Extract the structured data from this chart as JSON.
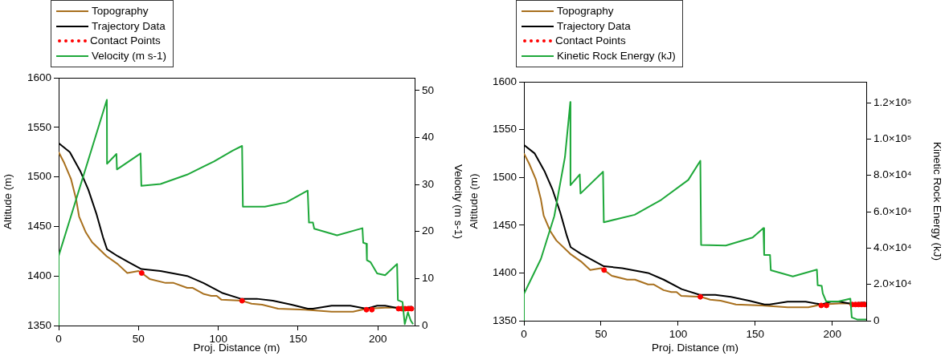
{
  "chart_data": [
    {
      "type": "line",
      "xlabel": "Proj. Distance (m)",
      "ylabel": "Altitude (m)",
      "y2label": "Velocity (m s-1)",
      "legend": "top left",
      "grid": false,
      "xlim": [
        0,
        223
      ],
      "xticks": [
        0,
        50,
        100,
        150,
        200
      ],
      "ylim": [
        1350,
        1600
      ],
      "yticks": [
        1350,
        1400,
        1450,
        1500,
        1550,
        1600
      ],
      "y2lim": [
        0,
        52.7
      ],
      "y2ticks": [
        0,
        10,
        20,
        30,
        40,
        50
      ],
      "series": [
        {
          "name": "Topography",
          "type": "line",
          "color": "#a8701e",
          "marker": "none",
          "x": [
            0,
            3.5,
            7.7,
            11,
            12.8,
            17,
            21,
            30,
            37,
            43,
            50,
            52,
            57,
            67,
            72,
            80.5,
            84,
            90.6,
            95.6,
            99,
            102,
            114.9,
            120.8,
            127.5,
            137.5,
            154.3,
            171,
            184.4,
            192.8,
            204.5,
            212.9,
            222
          ],
          "values": [
            1525,
            1514,
            1498,
            1477,
            1460,
            1444,
            1434,
            1420,
            1412,
            1403,
            1405,
            1403,
            1397,
            1393,
            1393,
            1388,
            1388,
            1382,
            1380,
            1380,
            1376,
            1375,
            1372,
            1371,
            1367,
            1366,
            1364,
            1364,
            1367,
            1368,
            1368,
            1368
          ]
        },
        {
          "name": "Trajectory Data",
          "type": "line",
          "color": "#000000",
          "marker": "none",
          "x": [
            0,
            7,
            13.5,
            18.6,
            23.6,
            27.8,
            30.3,
            37,
            43.7,
            51.8,
            63.8,
            80.5,
            90.6,
            102.3,
            114.1,
            124.1,
            134.2,
            145.9,
            156,
            159.3,
            171,
            182.7,
            192.8,
            199.5,
            204.5,
            211.2,
            221.3
          ],
          "values": [
            1534,
            1525,
            1506,
            1487,
            1463,
            1439,
            1427,
            1420,
            1414,
            1407,
            1405,
            1400,
            1393,
            1383,
            1377,
            1377,
            1375,
            1371,
            1367,
            1367,
            1370,
            1370,
            1367,
            1370,
            1370,
            1368,
            1369
          ]
        },
        {
          "name": "Contact Points",
          "type": "scatter",
          "color": "#ff0000",
          "marker": "circle",
          "x": [
            52,
            114.9,
            192.8,
            196.2,
            212.9,
            215,
            217,
            219,
            221
          ],
          "values": [
            1403,
            1375,
            1366,
            1366,
            1367,
            1367,
            1367,
            1367,
            1367
          ]
        },
        {
          "name": "Velocity (m s-1)",
          "type": "line",
          "axis": "y2",
          "color": "#1ea83a",
          "marker": "none",
          "x": [
            0,
            0,
            30.2,
            30.3,
            36.2,
            36.5,
            51.3,
            51.8,
            63.8,
            80.5,
            97.3,
            109,
            114.9,
            115.4,
            129.2,
            142.6,
            156,
            156.8,
            159.3,
            160.1,
            174.4,
            190.3,
            190.8,
            192.8,
            193.1,
            195.3,
            199.5,
            204.5,
            212,
            212.5,
            215.4,
            216.8,
            218.8,
            220.5,
            222
          ],
          "values": [
            0,
            14.8,
            48,
            34.4,
            36.5,
            33.2,
            36.6,
            29.7,
            30.1,
            32.1,
            34.9,
            37.2,
            38.2,
            25.3,
            25.3,
            26.2,
            28.7,
            21.9,
            21.9,
            20.6,
            19.2,
            20.7,
            17.6,
            17.4,
            13.9,
            13.5,
            11.1,
            10.7,
            13.1,
            5.4,
            5.0,
            0.3,
            2.8,
            1.1,
            0.3
          ]
        }
      ]
    },
    {
      "type": "line",
      "xlabel": "Proj. Distance (m)",
      "ylabel": "Altitude (m)",
      "y2label": "Kinetic Rock Energy (kJ)",
      "legend": "top left",
      "grid": false,
      "xlim": [
        0,
        222
      ],
      "xticks": [
        0,
        50,
        100,
        150,
        200
      ],
      "ylim": [
        1350,
        1600
      ],
      "yticks": [
        1350,
        1400,
        1450,
        1500,
        1550,
        1600
      ],
      "y2lim": [
        0,
        131500
      ],
      "y2ticks": [
        0,
        {
          "value": 20000,
          "label": "2.0×10⁴"
        },
        {
          "value": 40000,
          "label": "4.0×10⁴"
        },
        {
          "value": 60000,
          "label": "6.0×10⁴"
        },
        {
          "value": 80000,
          "label": "8.0×10⁴"
        },
        {
          "value": 100000,
          "label": "1.0×10⁵"
        },
        {
          "value": 120000,
          "label": "1.2×10⁵"
        }
      ],
      "series": [
        {
          "name": "Topography",
          "type": "line",
          "color": "#a8701e",
          "marker": "none",
          "x": [
            0,
            3.5,
            7.7,
            11,
            12.8,
            17,
            21,
            30,
            37,
            43,
            50,
            52,
            57,
            67,
            72,
            80.5,
            84,
            90.6,
            95.6,
            99,
            102,
            114.9,
            120.8,
            127.5,
            137.5,
            154.3,
            171,
            184.4,
            192.8,
            204.5,
            212.9,
            222
          ],
          "values": [
            1525,
            1514,
            1498,
            1477,
            1460,
            1444,
            1434,
            1420,
            1412,
            1403,
            1405,
            1403,
            1397,
            1393,
            1393,
            1388,
            1388,
            1382,
            1380,
            1380,
            1376,
            1375,
            1372,
            1371,
            1367,
            1366,
            1364,
            1364,
            1367,
            1368,
            1368,
            1368
          ]
        },
        {
          "name": "Trajectory Data",
          "type": "line",
          "color": "#000000",
          "marker": "none",
          "x": [
            0,
            7,
            13.5,
            18.6,
            23.6,
            27.8,
            30.3,
            37,
            43.7,
            51.8,
            63.8,
            80.5,
            90.6,
            102.3,
            114.1,
            124.1,
            134.2,
            145.9,
            156,
            159.3,
            171,
            182.7,
            192.8,
            199.5,
            204.5,
            211.2,
            221.3
          ],
          "values": [
            1534,
            1525,
            1506,
            1487,
            1463,
            1439,
            1427,
            1420,
            1414,
            1407,
            1405,
            1400,
            1393,
            1383,
            1377,
            1377,
            1375,
            1371,
            1367,
            1367,
            1370,
            1370,
            1367,
            1370,
            1370,
            1368,
            1369
          ]
        },
        {
          "name": "Contact Points",
          "type": "scatter",
          "color": "#ff0000",
          "marker": "circle",
          "x": [
            52,
            114.4,
            192.8,
            196.2,
            212.9,
            215,
            217,
            219,
            221
          ],
          "values": [
            1403,
            1375,
            1366,
            1366,
            1367,
            1367,
            1367,
            1367,
            1367
          ]
        },
        {
          "name": "Kinetic Rock Energy (kJ)",
          "type": "line",
          "axis": "y2",
          "color": "#1ea83a",
          "marker": "none",
          "x": [
            0,
            0,
            11,
            19.7,
            26.6,
            30.1,
            30.2,
            36.2,
            36.7,
            51.3,
            51.8,
            71.8,
            89,
            106.6,
            114.4,
            114.9,
            130.9,
            148.3,
            155.3,
            155.8,
            159.6,
            160.1,
            174.4,
            190,
            190.5,
            193.1,
            193.8,
            196,
            203.9,
            211.7,
            212.6,
            216,
            222
          ],
          "values": [
            0,
            14800,
            34000,
            57600,
            90000,
            120400,
            74600,
            80500,
            70000,
            82000,
            54200,
            58300,
            66500,
            77500,
            88000,
            41700,
            41400,
            45800,
            51000,
            36200,
            36200,
            27800,
            24400,
            28100,
            19500,
            19200,
            15100,
            10600,
            10600,
            12100,
            1800,
            700,
            700
          ]
        }
      ]
    }
  ]
}
